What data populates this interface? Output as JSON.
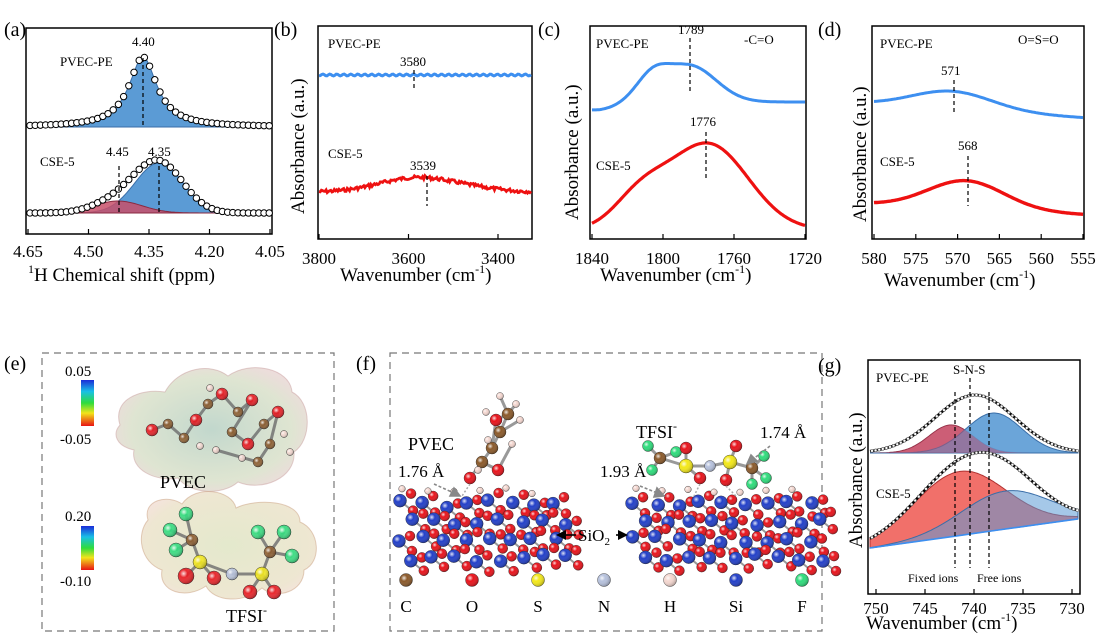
{
  "colors": {
    "blue": "#3d8ff0",
    "red": "#ee1111",
    "fill_blue": "#5b9bd5",
    "fill_red": "#c8506a",
    "fill_salmon": "#f0605a",
    "atom_C": "#8b5a2b",
    "atom_O": "#e8141c",
    "atom_S": "#f3e81a",
    "atom_N": "#b6c1dc",
    "atom_H": "#f4d7d0",
    "atom_Si": "#2340c8",
    "atom_F": "#2fdc7c"
  },
  "panels": {
    "a": {
      "label": "(a)",
      "top_name": "PVEC-PE",
      "top_peak": "4.40",
      "bottom_name": "CSE-5",
      "bottom_peak1": "4.45",
      "bottom_peak2": "4.35",
      "xlabel_sup": "1",
      "xlabel": "H Chemical shift (ppm)",
      "xticks": [
        "4.65",
        "4.50",
        "4.35",
        "4.20",
        "4.05"
      ]
    },
    "b": {
      "label": "(b)",
      "ylabel": "Absorbance (a.u.)",
      "top_name": "PVEC-PE",
      "top_peak": "3580",
      "bottom_name": "CSE-5",
      "bottom_peak": "3539",
      "xlabel": "Wavenumber (cm",
      "xlabel_sup": "-1",
      "xlabel_end": ")",
      "xticks": [
        "3800",
        "3600",
        "3400"
      ]
    },
    "c": {
      "label": "(c)",
      "ylabel": "Absorbance (a.u.)",
      "top_name": "PVEC-PE",
      "top_peak": "1789",
      "group": "-C=O",
      "bottom_name": "CSE-5",
      "bottom_peak": "1776",
      "xlabel": "Wavenumber (cm",
      "xlabel_sup": "-1",
      "xlabel_end": ")",
      "xticks": [
        "1840",
        "1800",
        "1760",
        "1720"
      ]
    },
    "d": {
      "label": "(d)",
      "ylabel": "Absorbance (a.u.)",
      "top_name": "PVEC-PE",
      "top_peak": "571",
      "group": "O=S=O",
      "bottom_name": "CSE-5",
      "bottom_peak": "568",
      "xlabel": "Wavenumber (cm",
      "xlabel_sup": "-1",
      "xlabel_end": ")",
      "xticks": [
        "580",
        "575",
        "570",
        "565",
        "560",
        "555"
      ]
    },
    "e": {
      "label": "(e)",
      "scale1_max": "0.05",
      "scale1_min": "-0.05",
      "mol1": "PVEC",
      "scale2_max": "0.20",
      "scale2_min": "-0.10",
      "mol2": "TFSI",
      "mol2_sup": "-"
    },
    "f": {
      "label": "(f)",
      "mol1": "PVEC",
      "dist1": "1.76 Å",
      "mol2": "TFSI",
      "mol2_sup": "-",
      "dist2": "1.74 Å",
      "dist3": "1.93 Å",
      "substrate": "SiO",
      "substrate_sub": "2",
      "legend": [
        "C",
        "O",
        "S",
        "N",
        "H",
        "Si",
        "F"
      ]
    },
    "g": {
      "label": "(g)",
      "ylabel": "Absorbance (a.u.)",
      "top_name": "PVEC-PE",
      "group": "S-N-S",
      "bottom_name": "CSE-5",
      "fixed_label": "Fixed ions",
      "free_label": "Free ions",
      "xlabel": "Wavenumber (cm",
      "xlabel_sup": "-1",
      "xlabel_end": ")",
      "xticks": [
        "750",
        "745",
        "740",
        "735",
        "730"
      ]
    }
  }
}
